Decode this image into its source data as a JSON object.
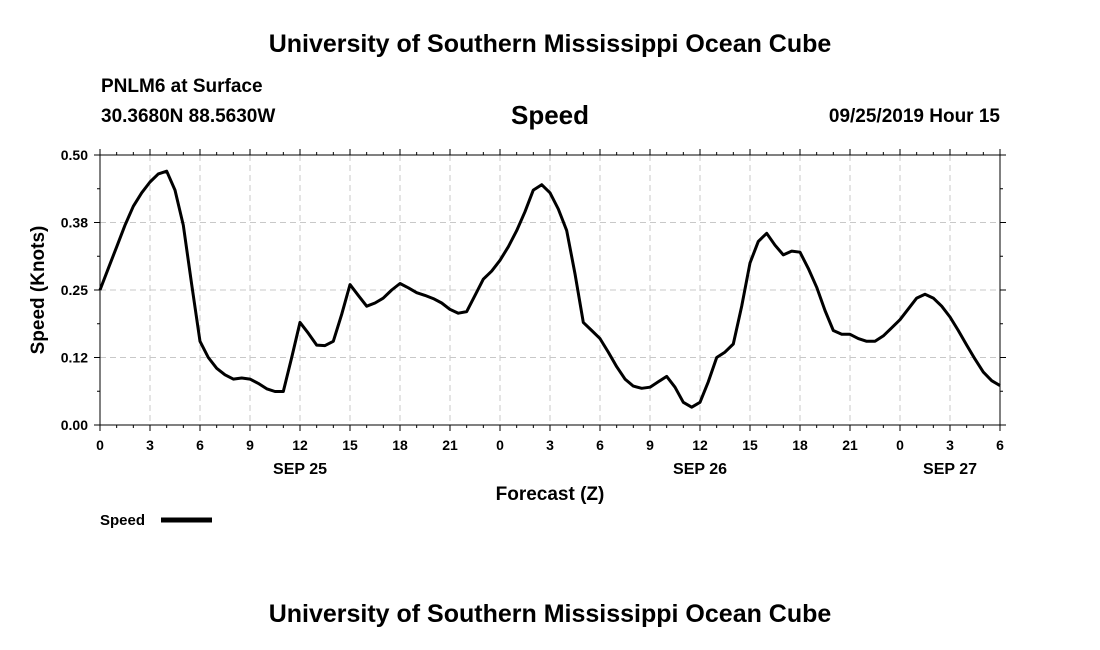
{
  "header": {
    "title": "University of Southern Mississippi Ocean Cube",
    "station": "PNLM6 at Surface",
    "coords": "30.3680N 88.5630W",
    "datetime": "09/25/2019 Hour 15"
  },
  "footer": {
    "title": "University of Southern Mississippi Ocean Cube"
  },
  "chart_data": {
    "type": "line",
    "title": "Speed",
    "xlabel": "Forecast (Z)",
    "ylabel": "Speed (Knots)",
    "ylim": [
      0,
      0.5
    ],
    "xlim": [
      0,
      54
    ],
    "grid": true,
    "y_ticks": [
      {
        "value": 0.0,
        "label": "0.00"
      },
      {
        "value": 0.125,
        "label": "0.12"
      },
      {
        "value": 0.25,
        "label": "0.25"
      },
      {
        "value": 0.375,
        "label": "0.38"
      },
      {
        "value": 0.5,
        "label": "0.50"
      }
    ],
    "x_ticks": [
      {
        "value": 0,
        "label": "0"
      },
      {
        "value": 3,
        "label": "3"
      },
      {
        "value": 6,
        "label": "6"
      },
      {
        "value": 9,
        "label": "9"
      },
      {
        "value": 12,
        "label": "12"
      },
      {
        "value": 15,
        "label": "15"
      },
      {
        "value": 18,
        "label": "18"
      },
      {
        "value": 21,
        "label": "21"
      },
      {
        "value": 24,
        "label": "0"
      },
      {
        "value": 27,
        "label": "3"
      },
      {
        "value": 30,
        "label": "6"
      },
      {
        "value": 33,
        "label": "9"
      },
      {
        "value": 36,
        "label": "12"
      },
      {
        "value": 39,
        "label": "15"
      },
      {
        "value": 42,
        "label": "18"
      },
      {
        "value": 45,
        "label": "21"
      },
      {
        "value": 48,
        "label": "0"
      },
      {
        "value": 51,
        "label": "3"
      },
      {
        "value": 54,
        "label": "6"
      }
    ],
    "date_labels": [
      {
        "value": 12,
        "label": "SEP 25"
      },
      {
        "value": 36,
        "label": "SEP 26"
      },
      {
        "value": 51,
        "label": "SEP 27"
      }
    ],
    "legend": {
      "label": "Speed",
      "position": "bottom-left"
    },
    "series": [
      {
        "name": "Speed",
        "x": [
          0,
          0.5,
          1,
          1.5,
          2,
          2.5,
          3,
          3.5,
          4,
          4.5,
          5,
          5.5,
          6,
          6.5,
          7,
          7.5,
          8,
          8.5,
          9,
          9.5,
          10,
          10.5,
          11,
          11.5,
          12,
          12.5,
          13,
          13.5,
          14,
          14.5,
          15,
          15.5,
          16,
          16.5,
          17,
          17.5,
          18,
          18.5,
          19,
          19.5,
          20,
          20.5,
          21,
          21.5,
          22,
          22.5,
          23,
          23.5,
          24,
          24.5,
          25,
          25.5,
          26,
          26.5,
          27,
          27.5,
          28,
          28.5,
          29,
          29.5,
          30,
          30.5,
          31,
          31.5,
          32,
          32.5,
          33,
          33.5,
          34,
          34.5,
          35,
          35.5,
          36,
          36.5,
          37,
          37.5,
          38,
          38.5,
          39,
          39.5,
          40,
          40.5,
          41,
          41.5,
          42,
          42.5,
          43,
          43.5,
          44,
          44.5,
          45,
          45.5,
          46,
          46.5,
          47,
          47.5,
          48,
          48.5,
          49,
          49.5,
          50,
          50.5,
          51,
          51.5,
          52,
          52.5,
          53,
          53.5,
          54
        ],
        "values": [
          0.25,
          0.29,
          0.33,
          0.37,
          0.405,
          0.43,
          0.45,
          0.465,
          0.47,
          0.435,
          0.37,
          0.26,
          0.155,
          0.125,
          0.105,
          0.093,
          0.085,
          0.087,
          0.085,
          0.077,
          0.067,
          0.062,
          0.062,
          0.125,
          0.19,
          0.17,
          0.148,
          0.147,
          0.155,
          0.205,
          0.26,
          0.24,
          0.22,
          0.226,
          0.235,
          0.25,
          0.262,
          0.254,
          0.245,
          0.24,
          0.234,
          0.226,
          0.214,
          0.207,
          0.21,
          0.24,
          0.27,
          0.285,
          0.305,
          0.33,
          0.36,
          0.395,
          0.435,
          0.445,
          0.43,
          0.4,
          0.36,
          0.28,
          0.19,
          0.175,
          0.16,
          0.135,
          0.108,
          0.085,
          0.072,
          0.068,
          0.07,
          0.08,
          0.09,
          0.07,
          0.042,
          0.033,
          0.042,
          0.08,
          0.125,
          0.135,
          0.15,
          0.22,
          0.3,
          0.34,
          0.355,
          0.333,
          0.315,
          0.322,
          0.32,
          0.29,
          0.255,
          0.212,
          0.175,
          0.168,
          0.168,
          0.16,
          0.155,
          0.155,
          0.165,
          0.18,
          0.195,
          0.215,
          0.235,
          0.242,
          0.235,
          0.22,
          0.2,
          0.175,
          0.148,
          0.122,
          0.098,
          0.082,
          0.073
        ]
      }
    ]
  }
}
